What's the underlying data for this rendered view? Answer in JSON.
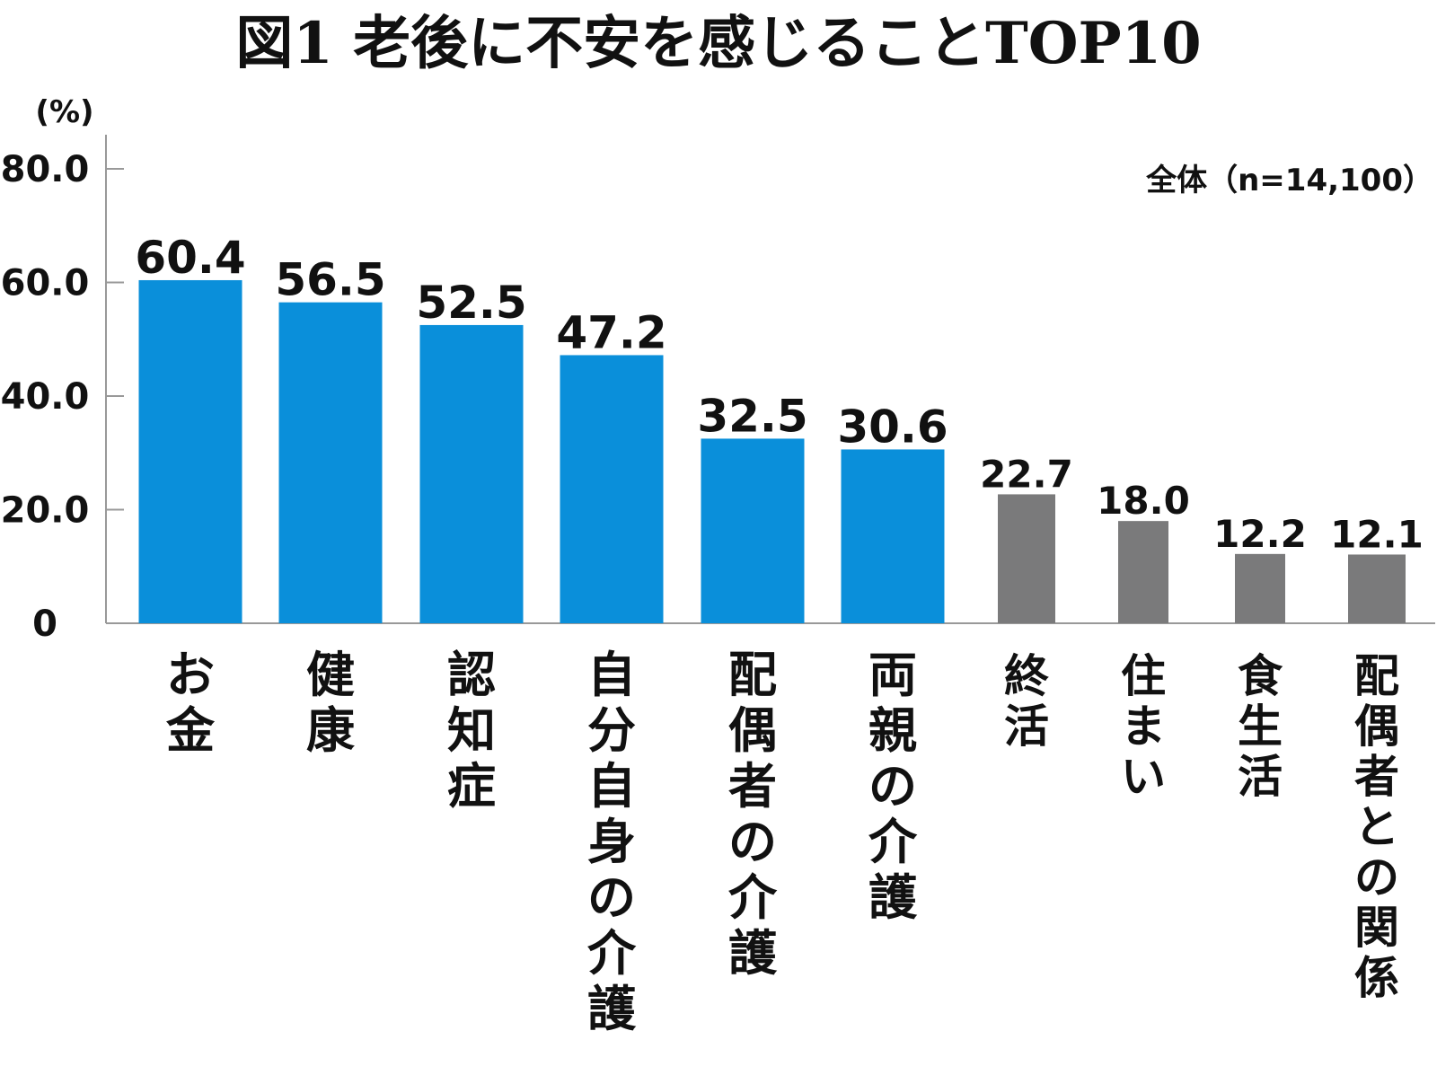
{
  "title": "図1 老後に不安を感じることTOP10",
  "note": "全体（n=14,100）",
  "colors": {
    "primary": "#0a8fda",
    "secondary": "#7a7a7b",
    "axis": "#999999"
  },
  "chart_data": {
    "type": "bar",
    "title": "図1 老後に不安を感じることTOP10",
    "ylabel": "(%)",
    "xlabel": "",
    "ylim": [
      0,
      80
    ],
    "yticks": [
      0,
      20.0,
      40.0,
      60.0,
      80.0
    ],
    "ytick_labels": [
      "0",
      "20.0",
      "40.0",
      "60.0",
      "80.0"
    ],
    "grid": false,
    "categories": [
      "お金",
      "健康",
      "認知症",
      "自分自身の介護",
      "配偶者の介護",
      "両親の介護",
      "終活",
      "住まい",
      "食生活",
      "配偶者との関係"
    ],
    "values": [
      60.4,
      56.5,
      52.5,
      47.2,
      32.5,
      30.6,
      22.7,
      18.0,
      12.2,
      12.1
    ],
    "value_labels": [
      "60.4",
      "56.5",
      "52.5",
      "47.2",
      "32.5",
      "30.6",
      "22.7",
      "18.0",
      "12.2",
      "12.1"
    ],
    "highlight": [
      "primary",
      "primary",
      "primary",
      "primary",
      "primary",
      "primary",
      "secondary",
      "secondary",
      "secondary",
      "secondary"
    ]
  }
}
